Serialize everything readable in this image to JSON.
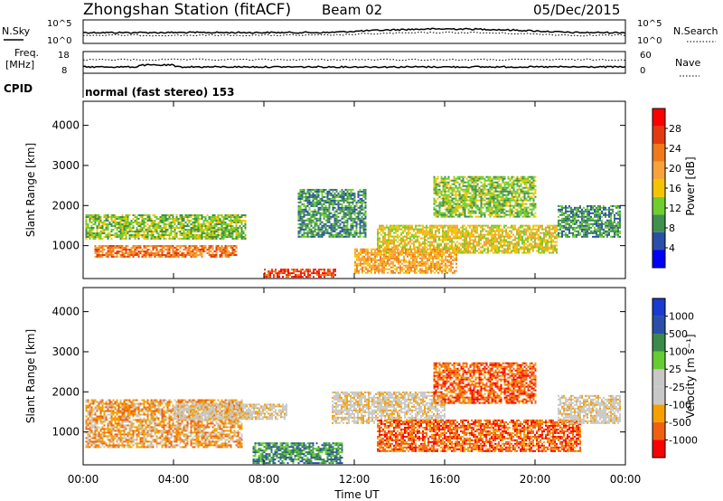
{
  "header": {
    "station": "Zhongshan Station (fitACF)",
    "beam": "Beam 02",
    "date": "05/Dec/2015"
  },
  "params": {
    "nsky_label": "N.Sky",
    "nsky_ticks": [
      "10^5",
      "10^0"
    ],
    "nsearch_label": "N.Search",
    "nsearch_ticks": [
      "10^5",
      "10^0"
    ],
    "freq_label": "Freq.",
    "freq_unit": "[MHz]",
    "freq_ticks": [
      "18",
      "8"
    ],
    "nave_label": "Nave",
    "nave_ticks": [
      "60",
      "0"
    ],
    "cpid_label": "CPID",
    "cpid_text": "normal (fast stereo) 153"
  },
  "chart_data": [
    {
      "type": "heatmap",
      "name": "power",
      "ylabel": "Slant Range [km]",
      "yticks": [
        "4000",
        "3000",
        "2000",
        "1000"
      ],
      "ylim": [
        180,
        4600
      ],
      "xlim": [
        0,
        24
      ],
      "colorbar_label": "Power [dB]",
      "colorbar_ticks": [
        "28",
        "24",
        "20",
        "16",
        "12",
        "8",
        "4"
      ],
      "colors": [
        "#0000ff",
        "#2a4fa8",
        "#3f8f4e",
        "#6fce2e",
        "#f5c400",
        "#f7a23a",
        "#f07a1a",
        "#e43a10",
        "#ff0000"
      ],
      "bands": [
        {
          "t0": 0.1,
          "t1": 7.2,
          "r0": 1150,
          "r1": 1750,
          "level": 3
        },
        {
          "t0": 0.5,
          "t1": 6.8,
          "r0": 700,
          "r1": 1000,
          "level": 6
        },
        {
          "t0": 8.0,
          "t1": 11.2,
          "r0": 200,
          "r1": 400,
          "level": 7
        },
        {
          "t0": 9.5,
          "t1": 12.5,
          "r0": 1200,
          "r1": 2400,
          "level": 2
        },
        {
          "t0": 13.0,
          "t1": 21.0,
          "r0": 800,
          "r1": 1500,
          "level": 4
        },
        {
          "t0": 15.5,
          "t1": 20.0,
          "r0": 1700,
          "r1": 2700,
          "level": 3
        },
        {
          "t0": 21.0,
          "t1": 23.8,
          "r0": 1200,
          "r1": 2000,
          "level": 2
        },
        {
          "t0": 12.0,
          "t1": 16.5,
          "r0": 300,
          "r1": 900,
          "level": 5
        }
      ]
    },
    {
      "type": "heatmap",
      "name": "velocity",
      "ylabel": "Slant Range [km]",
      "yticks": [
        "4000",
        "3000",
        "2000",
        "1000"
      ],
      "ylim": [
        180,
        4600
      ],
      "xlim": [
        0,
        24
      ],
      "xticks": [
        "00:00",
        "04:00",
        "08:00",
        "12:00",
        "16:00",
        "20:00",
        "00:00"
      ],
      "xlabel": "Time UT",
      "colorbar_label": "Velocity [m s⁻¹]",
      "colorbar_ticks": [
        "1000",
        "500",
        "100",
        "25",
        "-25",
        "-100",
        "-500",
        "-1000"
      ],
      "colors": [
        "#ff0000",
        "#f06010",
        "#f5a000",
        "#c8c8c8",
        "#c8c8c8",
        "#66cc33",
        "#3a8a4a",
        "#2a4fa8",
        "#1a3ad0"
      ],
      "bands": [
        {
          "t0": 0.1,
          "t1": 7.0,
          "r0": 600,
          "r1": 1800,
          "level": 2
        },
        {
          "t0": 4.0,
          "t1": 9.0,
          "r0": 1300,
          "r1": 1700,
          "level": 3
        },
        {
          "t0": 7.5,
          "t1": 11.5,
          "r0": 200,
          "r1": 700,
          "level": 6
        },
        {
          "t0": 11.0,
          "t1": 16.0,
          "r0": 1200,
          "r1": 2000,
          "level": 3
        },
        {
          "t0": 13.0,
          "t1": 22.0,
          "r0": 500,
          "r1": 1300,
          "level": 1
        },
        {
          "t0": 15.5,
          "t1": 20.0,
          "r0": 1700,
          "r1": 2700,
          "level": 1
        },
        {
          "t0": 21.0,
          "t1": 23.8,
          "r0": 1200,
          "r1": 1900,
          "level": 3
        }
      ]
    }
  ]
}
